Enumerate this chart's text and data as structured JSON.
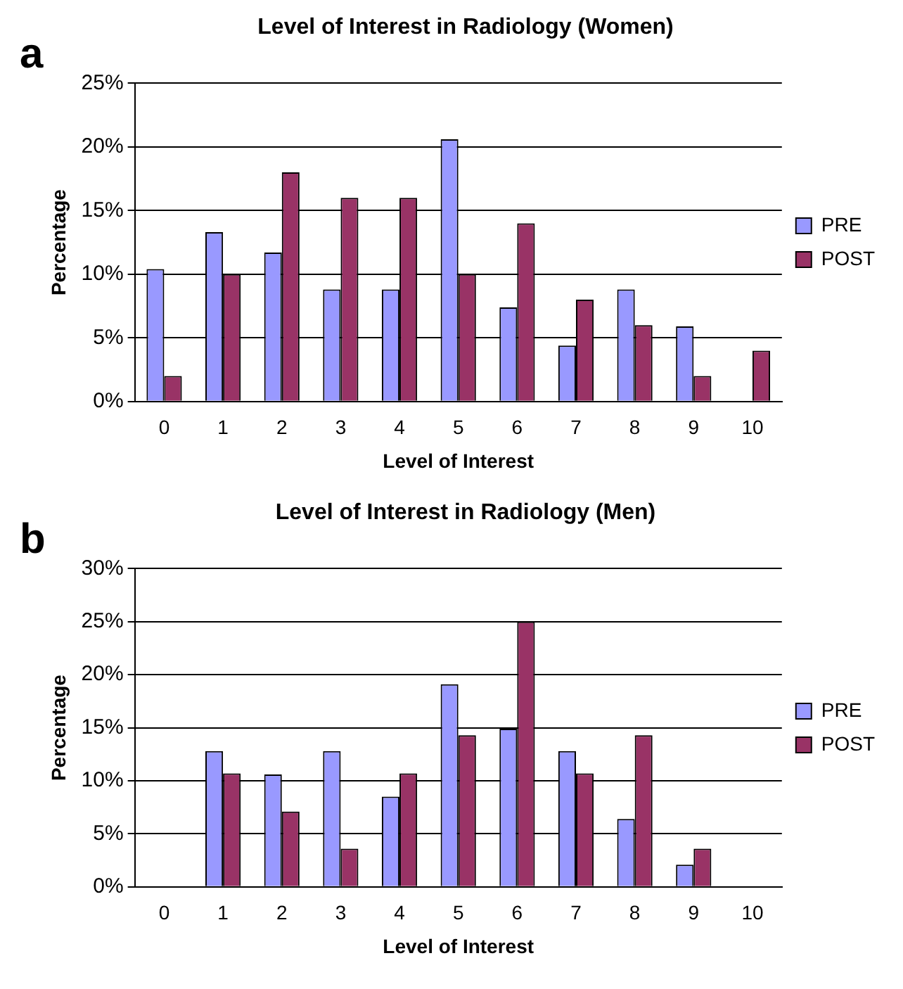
{
  "chart_data": [
    {
      "type": "bar",
      "title": "Level of Interest in Radiology (Women)",
      "annotations": [
        "a"
      ],
      "xlabel": "Level of Interest",
      "ylabel": "Percentage",
      "categories": [
        "0",
        "1",
        "2",
        "3",
        "4",
        "5",
        "6",
        "7",
        "8",
        "9",
        "10"
      ],
      "series": [
        {
          "name": "PRE",
          "color": "#9999ff",
          "values": [
            10.4,
            13.3,
            11.7,
            8.8,
            8.8,
            20.6,
            7.4,
            4.4,
            8.8,
            5.9,
            0
          ]
        },
        {
          "name": "POST",
          "color": "#993366",
          "values": [
            2,
            10,
            18,
            16,
            16,
            10,
            14,
            8,
            6,
            2,
            4
          ]
        }
      ],
      "ylim": [
        0,
        25
      ],
      "yticks": [
        {
          "value": 0,
          "label": "0%"
        },
        {
          "value": 5,
          "label": "5%"
        },
        {
          "value": 10,
          "label": "10%"
        },
        {
          "value": 15,
          "label": "15%"
        },
        {
          "value": 20,
          "label": "20%"
        },
        {
          "value": 25,
          "label": "25%"
        }
      ],
      "grid": "y",
      "legend": "right"
    },
    {
      "type": "bar",
      "title": "Level of Interest in Radiology (Men)",
      "annotations": [
        "b"
      ],
      "xlabel": "Level of Interest",
      "ylabel": "Percentage",
      "categories": [
        "0",
        "1",
        "2",
        "3",
        "4",
        "5",
        "6",
        "7",
        "8",
        "9",
        "10"
      ],
      "series": [
        {
          "name": "PRE",
          "color": "#9999ff",
          "values": [
            0,
            12.8,
            10.6,
            12.8,
            8.5,
            19.1,
            14.9,
            12.8,
            6.4,
            2.1,
            0
          ]
        },
        {
          "name": "POST",
          "color": "#993366",
          "values": [
            0,
            10.7,
            7.1,
            3.6,
            10.7,
            14.3,
            25,
            10.7,
            14.3,
            3.6,
            0
          ]
        }
      ],
      "ylim": [
        0,
        30
      ],
      "yticks": [
        {
          "value": 0,
          "label": "0%"
        },
        {
          "value": 5,
          "label": "5%"
        },
        {
          "value": 10,
          "label": "10%"
        },
        {
          "value": 15,
          "label": "15%"
        },
        {
          "value": 20,
          "label": "20%"
        },
        {
          "value": 25,
          "label": "25%"
        },
        {
          "value": 30,
          "label": "30%"
        }
      ],
      "grid": "y",
      "legend": "right"
    }
  ]
}
